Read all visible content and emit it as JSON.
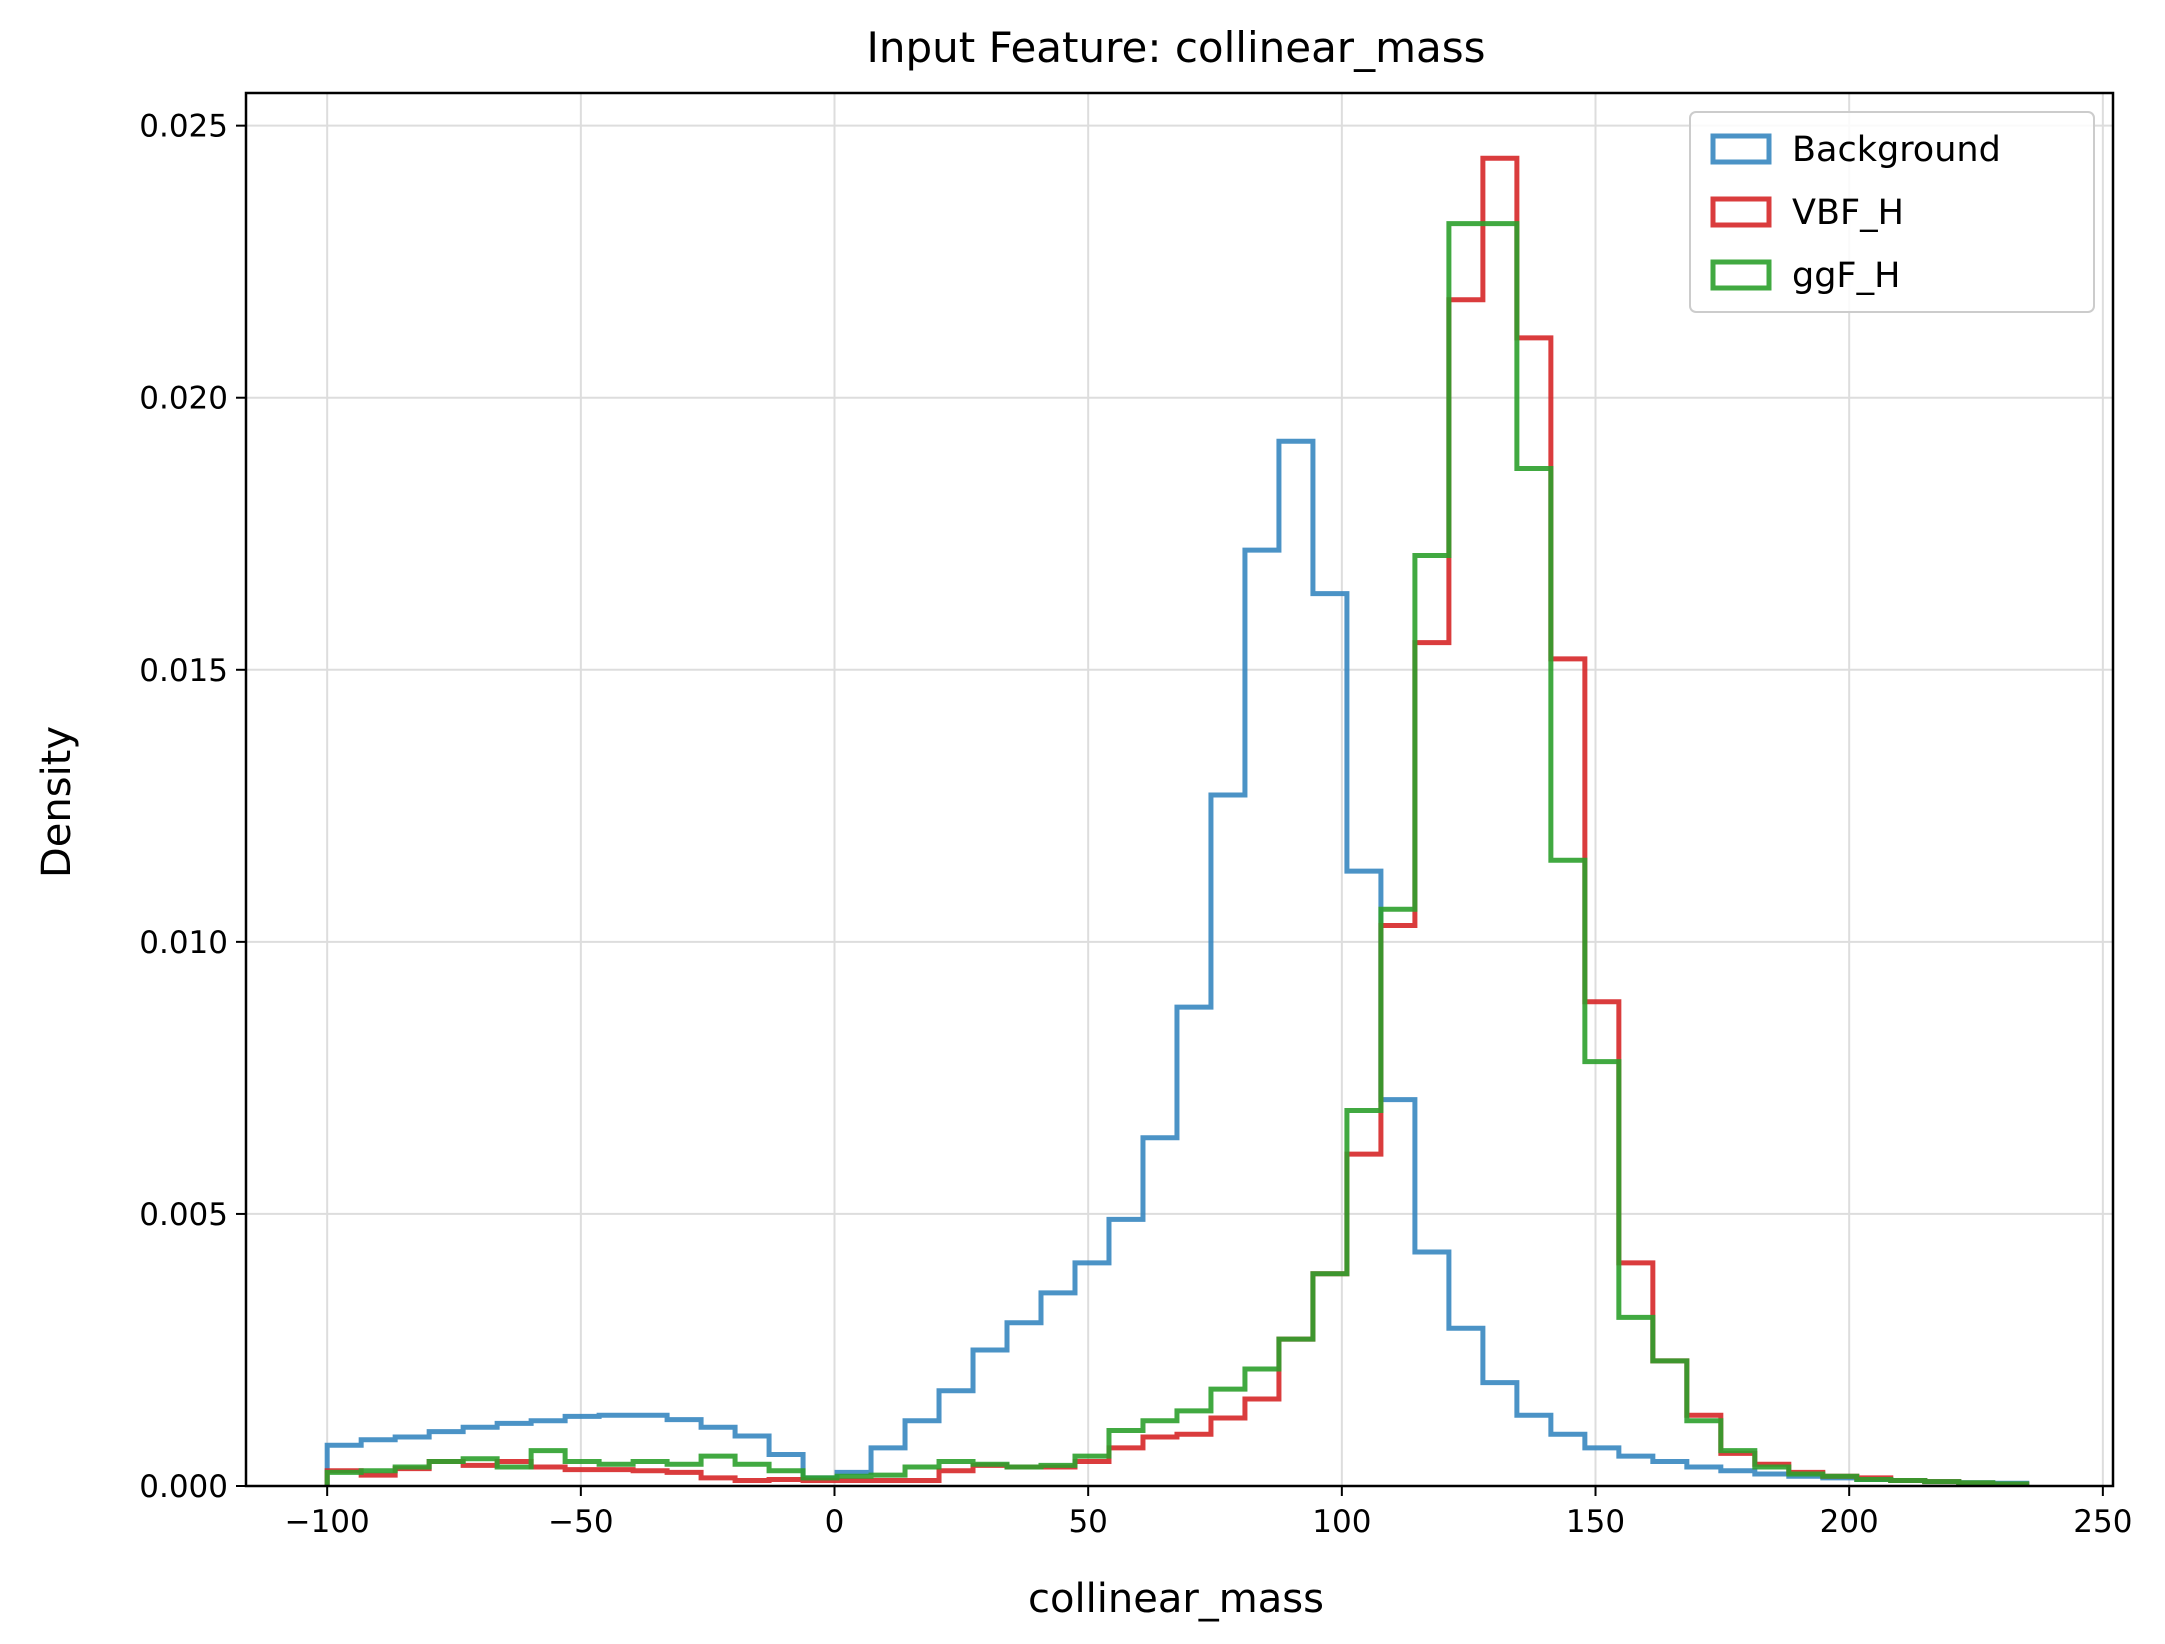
{
  "chart_data": {
    "type": "histogram",
    "title": "Input Feature: collinear_mass",
    "xlabel": "collinear_mass",
    "ylabel": "Density",
    "xlim": [
      -116,
      252
    ],
    "ylim": [
      0,
      0.0256
    ],
    "grid": true,
    "legend_position": "top-right",
    "x_ticks": [
      -100,
      -50,
      0,
      50,
      100,
      150,
      200,
      250
    ],
    "x_tick_labels": [
      "−100",
      "−50",
      "0",
      "50",
      "100",
      "150",
      "200",
      "250"
    ],
    "y_ticks": [
      0,
      0.005,
      0.01,
      0.015,
      0.02,
      0.025
    ],
    "y_tick_labels": [
      "0.000",
      "0.005",
      "0.010",
      "0.015",
      "0.020",
      "0.025"
    ],
    "bin_start": -100,
    "bin_width": 6.7,
    "series": [
      {
        "name": "Background",
        "color": "#3787c0",
        "values": [
          0.00075,
          0.00085,
          0.0009,
          0.001,
          0.00108,
          0.00115,
          0.0012,
          0.00128,
          0.0013,
          0.0013,
          0.00122,
          0.00108,
          0.00092,
          0.00058,
          0.00015,
          0.00025,
          0.0007,
          0.0012,
          0.00175,
          0.0025,
          0.003,
          0.00355,
          0.0041,
          0.0049,
          0.0064,
          0.0088,
          0.0127,
          0.0172,
          0.0192,
          0.0164,
          0.0113,
          0.0071,
          0.0043,
          0.0029,
          0.0019,
          0.0013,
          0.00095,
          0.0007,
          0.00055,
          0.00045,
          0.00035,
          0.00028,
          0.00022,
          0.00018,
          0.00015,
          0.00012,
          0.0001,
          8e-05,
          6e-05,
          5e-05
        ]
      },
      {
        "name": "VBF_H",
        "color": "#d62728",
        "values": [
          0.00028,
          0.0002,
          0.00032,
          0.00045,
          0.00038,
          0.00045,
          0.00035,
          0.0003,
          0.0003,
          0.00028,
          0.00025,
          0.00015,
          0.0001,
          0.00012,
          0.0001,
          0.0001,
          0.0001,
          0.0001,
          0.00028,
          0.00038,
          0.00035,
          0.00035,
          0.00045,
          0.0007,
          0.0009,
          0.00095,
          0.00125,
          0.0016,
          0.0027,
          0.0039,
          0.0061,
          0.0103,
          0.0155,
          0.0218,
          0.0244,
          0.0211,
          0.0152,
          0.0089,
          0.0041,
          0.0023,
          0.0013,
          0.0006,
          0.0004,
          0.00025,
          0.00018,
          0.00015,
          0.0001,
          8e-05,
          5e-05,
          3e-05
        ]
      },
      {
        "name": "ggF_H",
        "color": "#2ca02c",
        "values": [
          0.00025,
          0.00028,
          0.00035,
          0.00045,
          0.0005,
          0.00035,
          0.00065,
          0.00045,
          0.0004,
          0.00045,
          0.0004,
          0.00055,
          0.0004,
          0.00028,
          0.00015,
          0.00018,
          0.0002,
          0.00035,
          0.00045,
          0.0004,
          0.00035,
          0.00038,
          0.00055,
          0.00102,
          0.0012,
          0.00138,
          0.00178,
          0.00215,
          0.0027,
          0.0039,
          0.0069,
          0.0106,
          0.0171,
          0.0232,
          0.0232,
          0.0187,
          0.0115,
          0.0078,
          0.0031,
          0.0023,
          0.0012,
          0.00065,
          0.00035,
          0.00022,
          0.00018,
          0.00012,
          0.0001,
          8e-05,
          6e-05,
          4e-05
        ]
      }
    ]
  }
}
